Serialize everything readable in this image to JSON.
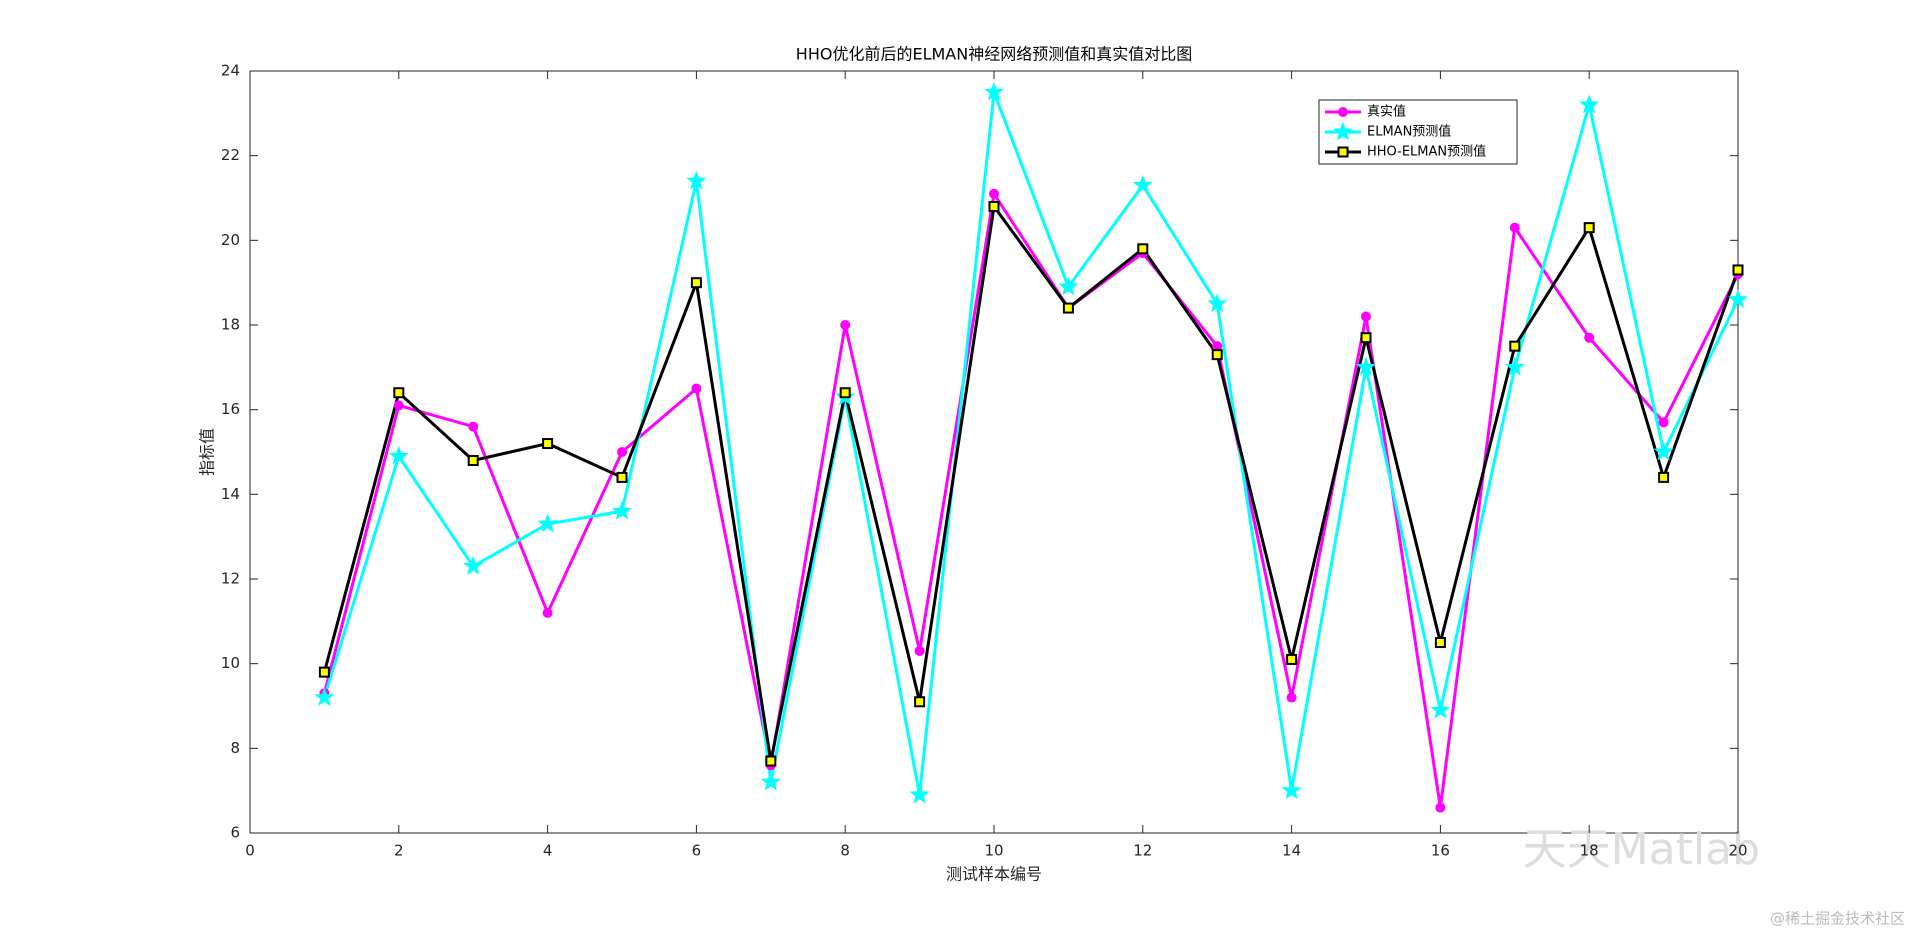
{
  "chart_data": {
    "type": "line",
    "title": "HHO优化前后的ELMAN神经网络预测值和真实值对比图",
    "x_label": "测试样本编号",
    "y_label": "指标值",
    "x": [
      1,
      2,
      3,
      4,
      5,
      6,
      7,
      8,
      9,
      10,
      11,
      12,
      13,
      14,
      15,
      16,
      17,
      18,
      19,
      20
    ],
    "series": [
      {
        "name": "真实值",
        "color": "#ff00ff",
        "marker": "circle",
        "values": [
          9.3,
          16.1,
          15.6,
          11.2,
          15.0,
          16.5,
          7.6,
          18.0,
          10.3,
          21.1,
          18.4,
          19.7,
          17.5,
          9.2,
          18.2,
          6.6,
          20.3,
          17.7,
          15.7,
          19.2
        ]
      },
      {
        "name": "ELMAN预测值",
        "color": "#00ffff",
        "marker": "star",
        "values": [
          9.2,
          14.9,
          12.3,
          13.3,
          13.6,
          21.4,
          7.2,
          16.3,
          6.9,
          23.5,
          18.9,
          21.3,
          18.5,
          7.0,
          17.0,
          8.9,
          17.0,
          23.2,
          15.0,
          18.6
        ]
      },
      {
        "name": "HHO-ELMAN预测值",
        "color": "#000000",
        "marker": "square",
        "values": [
          9.8,
          16.4,
          14.8,
          15.2,
          14.4,
          19.0,
          7.7,
          16.4,
          9.1,
          20.8,
          18.4,
          19.8,
          17.3,
          10.1,
          17.7,
          10.5,
          17.5,
          20.3,
          14.4,
          19.3
        ]
      }
    ],
    "xlim": [
      0,
      20
    ],
    "xticks": [
      0,
      2,
      4,
      6,
      8,
      10,
      12,
      14,
      16,
      18,
      20
    ],
    "ylim": [
      6,
      24
    ],
    "yticks": [
      6,
      8,
      10,
      12,
      14,
      16,
      18,
      20,
      22,
      24
    ],
    "grid": false,
    "legend": "upper right",
    "watermarks": [
      "天天Matlab",
      "@稀土掘金技术社区"
    ]
  }
}
